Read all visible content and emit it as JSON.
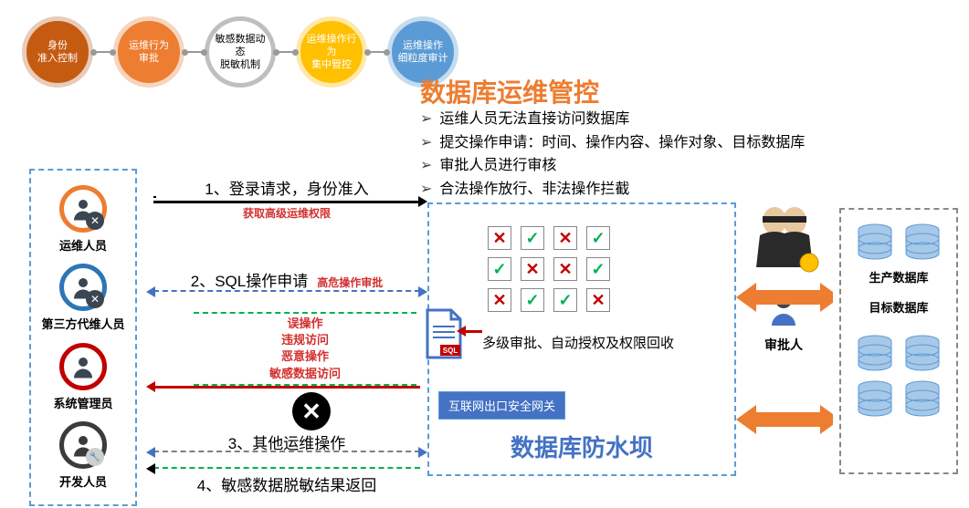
{
  "top_circles": [
    {
      "label": "身份\n准入控制",
      "fill": "#c55a11",
      "border": "#e8ccb8"
    },
    {
      "label": "运维行为\n审批",
      "fill": "#ed7d31",
      "border": "#f6d5bd"
    },
    {
      "label": "敏感数据动态\n脱敏机制",
      "fill": "#ffffff",
      "border": "#bfbfbf",
      "textcolor": "#000"
    },
    {
      "label": "运维操作行为\n集中管控",
      "fill": "#ffc000",
      "border": "#ffe8a8"
    },
    {
      "label": "运维操作\n细粒度审计",
      "fill": "#5b9bd5",
      "border": "#c5dcef"
    }
  ],
  "title": "数据库运维管控",
  "bullets": [
    "运维人员无法直接访问数据库",
    "提交操作申请：时间、操作内容、操作对象、目标数据库",
    "审批人员进行审核",
    "合法操作放行、非法操作拦截"
  ],
  "people": [
    {
      "label": "运维人员",
      "ring": "#ed7d31",
      "badge_bg": "#3b4652",
      "badge_txt": "✕"
    },
    {
      "label": "第三方代维人员",
      "ring": "#2e75b6",
      "badge_bg": "#3b4652",
      "badge_txt": "✕"
    },
    {
      "label": "系统管理员",
      "ring": "#c00000",
      "badge_bg": null
    },
    {
      "label": "开发人员",
      "ring": "#3b3b3b",
      "badge_bg": "#cfcfcf",
      "badge_txt": "🔧"
    }
  ],
  "flows": {
    "f1": {
      "label": "1、登录请求，身份准入",
      "color": "#000000",
      "note": "获取高级运维权限"
    },
    "f2": {
      "label": "2、SQL操作申请",
      "color": "#4472c4",
      "side_note": "高危操作审批"
    },
    "f3": {
      "label": "3、其他运维操作",
      "color": "#7f7f7f"
    },
    "f4": {
      "label": "4、敏感数据脱敏结果返回",
      "color": "#00b050"
    }
  },
  "violations": [
    "误操作",
    "违规访问",
    "恶意操作",
    "敏感数据访问"
  ],
  "center": {
    "grid": [
      [
        "✕",
        "✓",
        "✕",
        "✓"
      ],
      [
        "✓",
        "✕",
        "✕",
        "✓"
      ],
      [
        "✕",
        "✓",
        "✓",
        "✕"
      ]
    ],
    "pass_color": "#00b050",
    "fail_color": "#c00000",
    "gateway": "互联网出口安全网关",
    "dam": "数据库防水坝"
  },
  "approval_text": "多级审批、自动授权及权限回收",
  "approver_label": "审批人",
  "db": {
    "label1": "生产数据库",
    "label2": "目标数据库"
  },
  "colors": {
    "orange_arrow": "#ed7d31",
    "db_fill": "#a8c8e8",
    "db_stroke": "#5b9bd5"
  }
}
